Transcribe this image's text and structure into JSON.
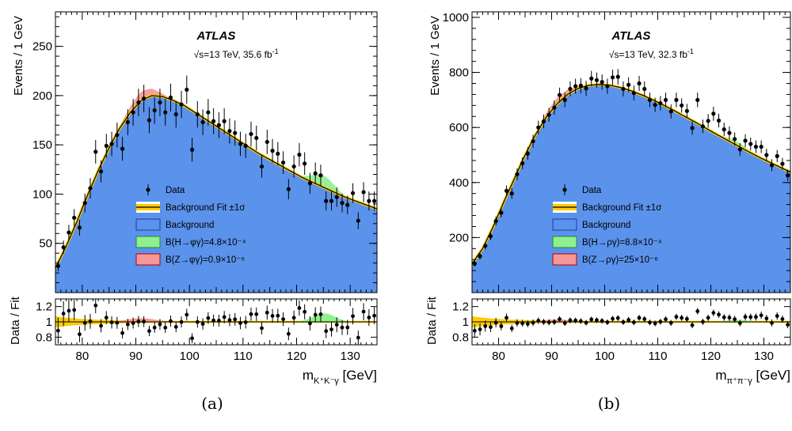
{
  "chart_data": [
    {
      "type": "scatter",
      "experiment": "ATLAS",
      "energy_prefix": "√s=13 TeV, ",
      "luminosity": "35.6",
      "lumi_unit": "fb",
      "lumi_exp": "-1",
      "ylabel": "Events / 1 GeV",
      "xlabel_main": "m",
      "xlabel_sub": "K⁺K⁻γ",
      "xlabel_unit": " [GeV]",
      "ratio_ylabel": "Data / Fit",
      "caption": "(a)",
      "xlim": [
        75,
        135
      ],
      "ylim": [
        0,
        285
      ],
      "ratio_ylim": [
        0.7,
        1.3
      ],
      "x_ticks": [
        80,
        90,
        100,
        110,
        120,
        130
      ],
      "y_ticks": [
        50,
        100,
        150,
        200,
        250
      ],
      "ratio_ticks": [
        0.8,
        1,
        1.2
      ],
      "x_tick_labels": [
        "80",
        "90",
        "100",
        "110",
        "120",
        "130"
      ],
      "y_tick_labels": [
        "50",
        "100",
        "150",
        "200",
        "250"
      ],
      "ratio_tick_labels": [
        "0.8",
        "1",
        "1.2"
      ],
      "legend": [
        "Data",
        "Background Fit ±1σ",
        "Background",
        "B(H→φγ)=4.8×10⁻⁴",
        "B(Z→φγ)=0.9×10⁻⁶"
      ],
      "legend_position": "center",
      "colors": {
        "data": "#000000",
        "fit": "#000000",
        "band": "#ffcc00",
        "background": "#5b92eb",
        "higgs": "#8ef08e",
        "z": "#f79797"
      },
      "signals": {
        "higgs": {
          "mean": 125,
          "sigma": 2.0,
          "height": 12
        },
        "z": {
          "mean": 91.2,
          "sigma": 2.6,
          "height": 9
        }
      },
      "fit_shape": {
        "peak_x": 93,
        "peak_y": 202
      },
      "fit_curve": {
        "x": [
          75,
          77,
          79,
          81,
          83,
          85,
          87,
          89,
          91,
          93,
          95,
          97,
          99,
          101,
          103,
          105,
          107,
          109,
          111,
          113,
          115,
          117,
          119,
          121,
          123,
          125,
          127,
          129,
          131,
          133,
          135
        ],
        "y": [
          25,
          47,
          72,
          99,
          124,
          147,
          167,
          183,
          195,
          200,
          199,
          195,
          190,
          183,
          176,
          169,
          162,
          155,
          148,
          141,
          135,
          129,
          123,
          117,
          112,
          107,
          102,
          97,
          93,
          89,
          85
        ]
      },
      "data_points": {
        "x": [
          75.5,
          76.5,
          77.5,
          78.5,
          79.5,
          80.5,
          81.5,
          82.5,
          83.5,
          84.5,
          85.5,
          86.5,
          87.5,
          88.5,
          89.5,
          90.5,
          91.5,
          92.5,
          93.5,
          94.5,
          95.5,
          96.5,
          97.5,
          98.5,
          99.5,
          100.5,
          101.5,
          102.5,
          103.5,
          104.5,
          105.5,
          106.5,
          107.5,
          108.5,
          109.5,
          110.5,
          111.5,
          112.5,
          113.5,
          114.5,
          115.5,
          116.5,
          117.5,
          118.5,
          119.5,
          120.5,
          121.5,
          122.5,
          123.5,
          124.5,
          125.5,
          126.5,
          127.5,
          128.5,
          129.5,
          130.5,
          131.5,
          132.5,
          133.5,
          134.5
        ],
        "y": [
          27,
          46,
          61,
          76,
          66,
          91,
          106,
          143,
          123,
          149,
          151,
          160,
          146,
          173,
          183,
          193,
          197,
          175,
          185,
          193,
          183,
          198,
          181,
          191,
          206,
          145,
          181,
          173,
          183,
          174,
          170,
          174,
          164,
          162,
          151,
          149,
          161,
          157,
          128,
          153,
          144,
          141,
          132,
          105,
          128,
          140,
          131,
          111,
          121,
          119,
          93,
          93,
          97,
          91,
          89,
          101,
          73,
          102,
          93,
          93
        ]
      }
    },
    {
      "type": "scatter",
      "experiment": "ATLAS",
      "energy_prefix": "√s=13 TeV, ",
      "luminosity": "32.3",
      "lumi_unit": "fb",
      "lumi_exp": "-1",
      "ylabel": "Events / 1 GeV",
      "xlabel_main": "m",
      "xlabel_sub": "π⁺π⁻γ",
      "xlabel_unit": " [GeV]",
      "ratio_ylabel": "Data / Fit",
      "caption": "(b)",
      "xlim": [
        75,
        135
      ],
      "ylim": [
        0,
        1020
      ],
      "ratio_ylim": [
        0.7,
        1.3
      ],
      "x_ticks": [
        80,
        90,
        100,
        110,
        120,
        130
      ],
      "y_ticks": [
        200,
        400,
        600,
        800,
        1000
      ],
      "ratio_ticks": [
        0.8,
        1,
        1.2
      ],
      "x_tick_labels": [
        "80",
        "90",
        "100",
        "110",
        "120",
        "130"
      ],
      "y_tick_labels": [
        "200",
        "400",
        "600",
        "800",
        "1000"
      ],
      "ratio_tick_labels": [
        "0.8",
        "1",
        "1.2"
      ],
      "legend": [
        "Data",
        "Background Fit ±1σ",
        "Background",
        "B(H→ργ)=8.8×10⁻⁴",
        "B(Z→ργ)=25×10⁻⁶"
      ],
      "legend_position": "center",
      "colors": {
        "data": "#000000",
        "fit": "#000000",
        "band": "#ffcc00",
        "background": "#5b92eb",
        "higgs": "#8ef08e",
        "z": "#f79797"
      },
      "signals": {
        "higgs": {
          "mean": 125,
          "sigma": 2.0,
          "height": 14
        },
        "z": {
          "mean": 91.2,
          "sigma": 2.6,
          "height": 22
        }
      },
      "fit_curve": {
        "x": [
          75,
          77,
          79,
          81,
          83,
          85,
          87,
          89,
          91,
          93,
          95,
          97,
          99,
          101,
          103,
          105,
          107,
          109,
          111,
          113,
          115,
          117,
          119,
          121,
          123,
          125,
          127,
          129,
          131,
          133,
          135
        ],
        "y": [
          105,
          160,
          240,
          330,
          415,
          500,
          575,
          638,
          685,
          720,
          742,
          753,
          756,
          753,
          745,
          733,
          718,
          701,
          682,
          662,
          641,
          620,
          598,
          576,
          555,
          534,
          513,
          493,
          474,
          456,
          438
        ]
      },
      "data_points": {
        "x": [
          75.5,
          76.5,
          77.5,
          78.5,
          79.5,
          80.5,
          81.5,
          82.5,
          83.5,
          84.5,
          85.5,
          86.5,
          87.5,
          88.5,
          89.5,
          90.5,
          91.5,
          92.5,
          93.5,
          94.5,
          95.5,
          96.5,
          97.5,
          98.5,
          99.5,
          100.5,
          101.5,
          102.5,
          103.5,
          104.5,
          105.5,
          106.5,
          107.5,
          108.5,
          109.5,
          110.5,
          111.5,
          112.5,
          113.5,
          114.5,
          115.5,
          116.5,
          117.5,
          118.5,
          119.5,
          120.5,
          121.5,
          122.5,
          123.5,
          124.5,
          125.5,
          126.5,
          127.5,
          128.5,
          129.5,
          130.5,
          131.5,
          132.5,
          133.5,
          134.5
        ],
        "y": [
          105,
          132,
          170,
          205,
          260,
          290,
          370,
          360,
          430,
          470,
          505,
          550,
          600,
          622,
          646,
          672,
          718,
          700,
          740,
          750,
          752,
          742,
          778,
          772,
          765,
          750,
          782,
          784,
          740,
          755,
          725,
          760,
          740,
          700,
          682,
          688,
          700,
          658,
          700,
          680,
          660,
          598,
          700,
          604,
          624,
          650,
          625,
          593,
          580,
          558,
          520,
          552,
          540,
          530,
          530,
          500,
          463,
          496,
          468,
          426
        ]
      }
    }
  ]
}
